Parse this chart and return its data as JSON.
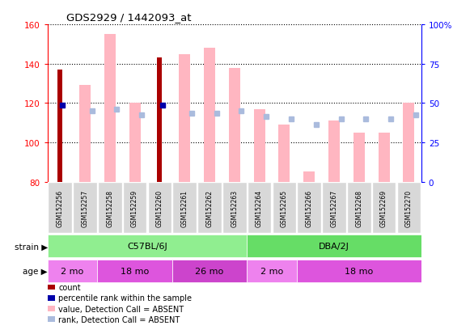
{
  "title": "GDS2929 / 1442093_at",
  "samples": [
    "GSM152256",
    "GSM152257",
    "GSM152258",
    "GSM152259",
    "GSM152260",
    "GSM152261",
    "GSM152262",
    "GSM152263",
    "GSM152264",
    "GSM152265",
    "GSM152266",
    "GSM152267",
    "GSM152268",
    "GSM152269",
    "GSM152270"
  ],
  "count_values": [
    137,
    null,
    null,
    null,
    143,
    null,
    null,
    null,
    null,
    null,
    null,
    null,
    null,
    null,
    null
  ],
  "rank_values": [
    119,
    null,
    null,
    null,
    119,
    null,
    null,
    null,
    null,
    null,
    null,
    null,
    null,
    null,
    null
  ],
  "absent_value_bars": [
    null,
    129,
    155,
    120,
    null,
    145,
    148,
    138,
    117,
    109,
    85,
    111,
    105,
    105,
    120
  ],
  "absent_rank_squares": [
    null,
    116,
    117,
    114,
    null,
    115,
    115,
    116,
    113,
    112,
    109,
    112,
    112,
    112,
    114
  ],
  "ylim_left": [
    80,
    160
  ],
  "ylim_right": [
    0,
    100
  ],
  "yticks_left": [
    80,
    100,
    120,
    140,
    160
  ],
  "yticks_right": [
    0,
    25,
    50,
    75,
    100
  ],
  "yticklabels_right": [
    "0",
    "25",
    "50",
    "75",
    "100%"
  ],
  "grid_lines": [
    100,
    120,
    140
  ],
  "strain_groups": [
    {
      "label": "C57BL/6J",
      "start": 0,
      "end": 8,
      "color": "#90EE90"
    },
    {
      "label": "DBA/2J",
      "start": 8,
      "end": 15,
      "color": "#66DD66"
    }
  ],
  "age_groups": [
    {
      "label": "2 mo",
      "start": 0,
      "end": 2,
      "color": "#EE82EE"
    },
    {
      "label": "18 mo",
      "start": 2,
      "end": 5,
      "color": "#DD55DD"
    },
    {
      "label": "26 mo",
      "start": 5,
      "end": 8,
      "color": "#CC44CC"
    },
    {
      "label": "2 mo",
      "start": 8,
      "end": 10,
      "color": "#EE82EE"
    },
    {
      "label": "18 mo",
      "start": 10,
      "end": 15,
      "color": "#DD55DD"
    }
  ],
  "color_count": "#AA0000",
  "color_rank": "#0000AA",
  "color_absent_value": "#FFB6C1",
  "color_absent_rank": "#AABBDD",
  "bar_width": 0.35
}
